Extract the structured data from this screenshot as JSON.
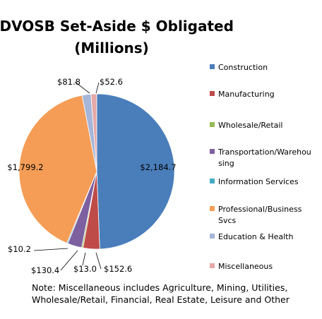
{
  "chart_data": {
    "type": "pie",
    "title_lines": [
      "SDVOSB Set-Aside $ Obligated",
      "(Millions)"
    ],
    "slices": [
      {
        "name": "Construction",
        "value": 2184.7,
        "label": "$2,184.7",
        "color": "#4a7ebb"
      },
      {
        "name": "Manufacturing",
        "value": 152.6,
        "label": "$152.6",
        "color": "#be4b48"
      },
      {
        "name": "Wholesale/Retail",
        "value": 13.0,
        "label": "$13.0",
        "color": "#98b954"
      },
      {
        "name": "Transportation/Warehousing",
        "value": 130.4,
        "label": "$130.4",
        "color": "#7d60a0"
      },
      {
        "name": "Information Services",
        "value": 10.2,
        "label": "$10.2",
        "color": "#46aac5"
      },
      {
        "name": "Professional/Business Svcs",
        "value": 1799.2,
        "label": "$1,799.2",
        "color": "#f59d56"
      },
      {
        "name": "Education & Health",
        "value": 81.8,
        "label": "$81.8",
        "color": "#a5b6d8"
      },
      {
        "name": "Miscellaneous",
        "value": 52.6,
        "label": "$52.6",
        "color": "#e6a8a8"
      }
    ],
    "legend": {
      "placement": "right",
      "entries": [
        [
          "Construction"
        ],
        [
          "Manufacturing"
        ],
        [
          "Wholesale/Retail"
        ],
        [
          "Transportation/Warehou",
          "sing"
        ],
        [
          "Information Services"
        ],
        [
          "Professional/Business",
          "Svcs"
        ],
        [
          "Education & Health"
        ],
        [
          "Miscellaneous"
        ]
      ]
    }
  },
  "note_lines": [
    "Note: Miscellaneous includes Agriculture, Mining, Utilities,",
    "Wholesale/Retail, Financial, Real Estate, Leisure and Other"
  ]
}
